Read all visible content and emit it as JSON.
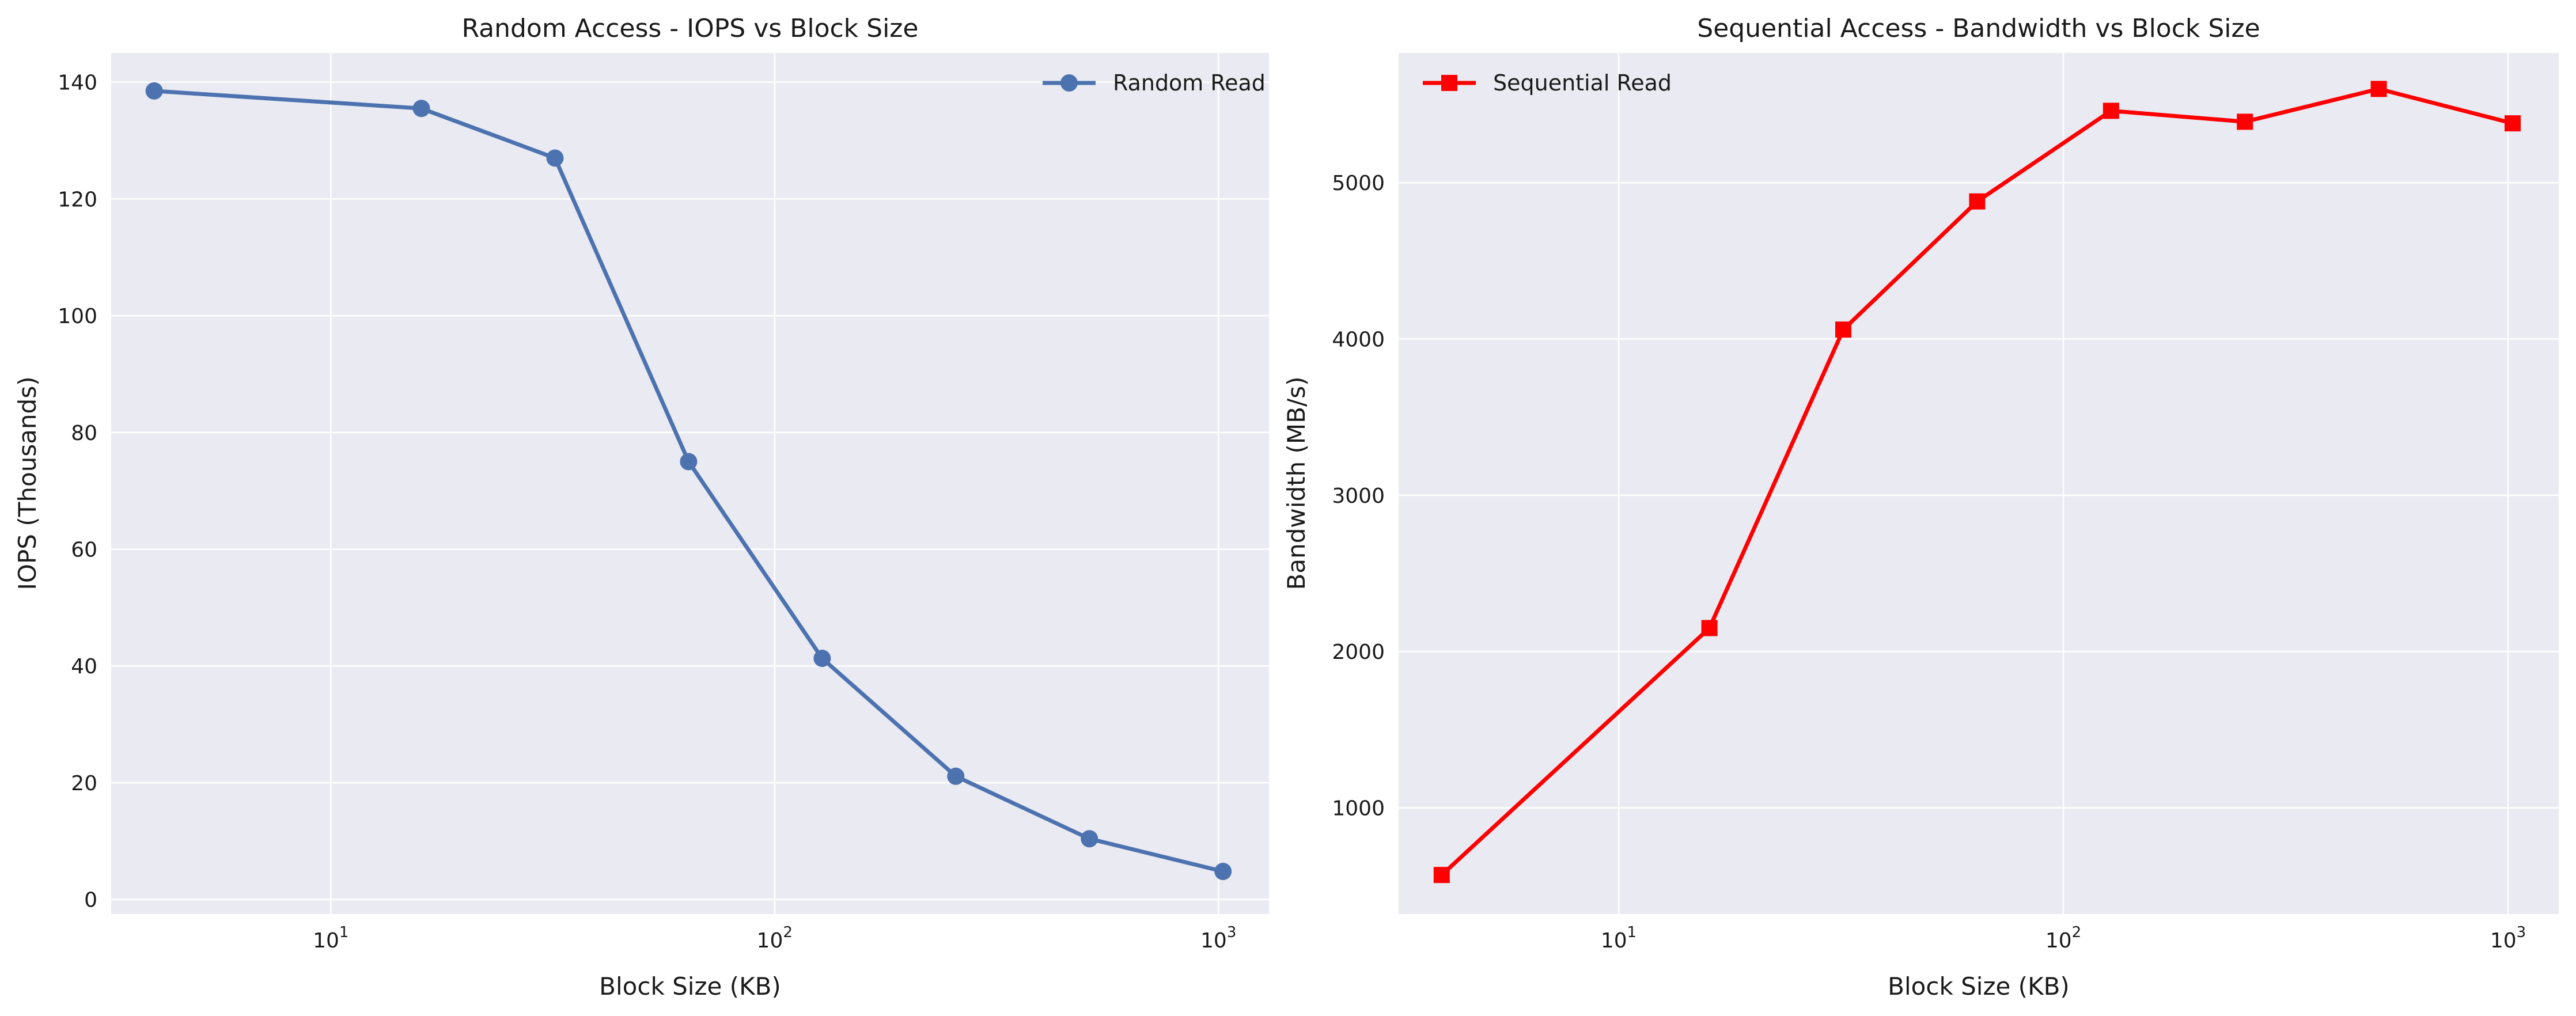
{
  "chart_data": [
    {
      "type": "line",
      "title": "Random Access - IOPS vs Block Size",
      "xlabel": "Block Size (KB)",
      "ylabel": "IOPS (Thousands)",
      "xscale": "log",
      "xlim": [
        3.2,
        1300
      ],
      "ylim": [
        -2.5,
        145
      ],
      "xticks": [
        {
          "value": 10,
          "label": "10",
          "exp": "1"
        },
        {
          "value": 100,
          "label": "10",
          "exp": "2"
        },
        {
          "value": 1000,
          "label": "10",
          "exp": "3"
        }
      ],
      "yticks": [
        0,
        20,
        40,
        60,
        80,
        100,
        120,
        140
      ],
      "grid": true,
      "legend_position": "top-right",
      "series": [
        {
          "name": "Random Read",
          "color": "#4c72b0",
          "marker": "circle",
          "x": [
            4,
            16,
            32,
            64,
            128,
            256,
            512,
            1024
          ],
          "y": [
            138.5,
            135.5,
            127,
            75,
            41.3,
            21.1,
            10.4,
            4.8
          ]
        }
      ]
    },
    {
      "type": "line",
      "title": "Sequential Access - Bandwidth vs Block Size",
      "xlabel": "Block Size (KB)",
      "ylabel": "Bandwidth (MB/s)",
      "xscale": "log",
      "xlim": [
        3.2,
        1300
      ],
      "ylim": [
        320,
        5830
      ],
      "xticks": [
        {
          "value": 10,
          "label": "10",
          "exp": "1"
        },
        {
          "value": 100,
          "label": "10",
          "exp": "2"
        },
        {
          "value": 1000,
          "label": "10",
          "exp": "3"
        }
      ],
      "yticks": [
        1000,
        2000,
        3000,
        4000,
        5000
      ],
      "grid": true,
      "legend_position": "top-left",
      "series": [
        {
          "name": "Sequential Read",
          "color": "#ff0000",
          "marker": "square",
          "x": [
            4,
            16,
            32,
            64,
            128,
            256,
            512,
            1024
          ],
          "y": [
            570,
            2150,
            4060,
            4880,
            5460,
            5390,
            5600,
            5380
          ]
        }
      ]
    }
  ]
}
